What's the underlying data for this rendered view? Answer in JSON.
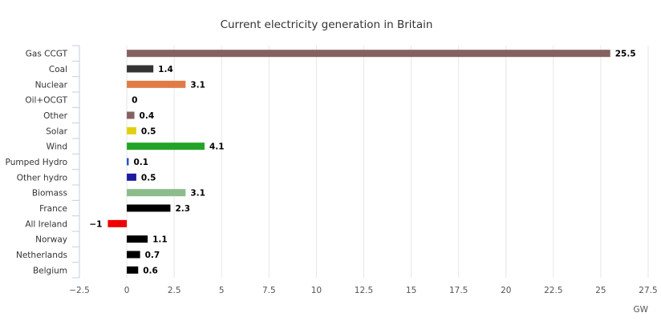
{
  "chart_data": {
    "type": "bar",
    "orientation": "horizontal",
    "title": "Current electricity generation in Britain",
    "xlabel": "GW",
    "ylabel": "",
    "xlim": [
      -2.5,
      27.5
    ],
    "x_ticks": [
      -2.5,
      0,
      2.5,
      5,
      7.5,
      10,
      12.5,
      15,
      17.5,
      20,
      22.5,
      25,
      27.5
    ],
    "x_tick_labels": [
      "−2.5",
      "0",
      "2.5",
      "5",
      "7.5",
      "10",
      "12.5",
      "15",
      "17.5",
      "20",
      "22.5",
      "25",
      "27.5"
    ],
    "grid": "vertical",
    "legend": "none",
    "categories": [
      "Gas CCGT",
      "Coal",
      "Nuclear",
      "Oil+OCGT",
      "Other",
      "Solar",
      "Wind",
      "Pumped Hydro",
      "Other hydro",
      "Biomass",
      "France",
      "All Ireland",
      "Norway",
      "Netherlands",
      "Belgium"
    ],
    "values": [
      25.5,
      1.4,
      3.1,
      0,
      0.4,
      0.5,
      4.1,
      0.1,
      0.5,
      3.1,
      2.3,
      -1,
      1.1,
      0.7,
      0.6
    ],
    "value_labels": [
      "25.5",
      "1.4",
      "3.1",
      "0",
      "0.4",
      "0.5",
      "4.1",
      "0.1",
      "0.5",
      "3.1",
      "2.3",
      "−1",
      "1.1",
      "0.7",
      "0.6"
    ],
    "colors": [
      "#866161",
      "#333333",
      "#e07b47",
      "#000000",
      "#866161",
      "#e0d010",
      "#22a427",
      "#1a4ec9",
      "#1c1c9e",
      "#8cbc8c",
      "#000000",
      "#ee0000",
      "#000000",
      "#000000",
      "#000000"
    ]
  }
}
